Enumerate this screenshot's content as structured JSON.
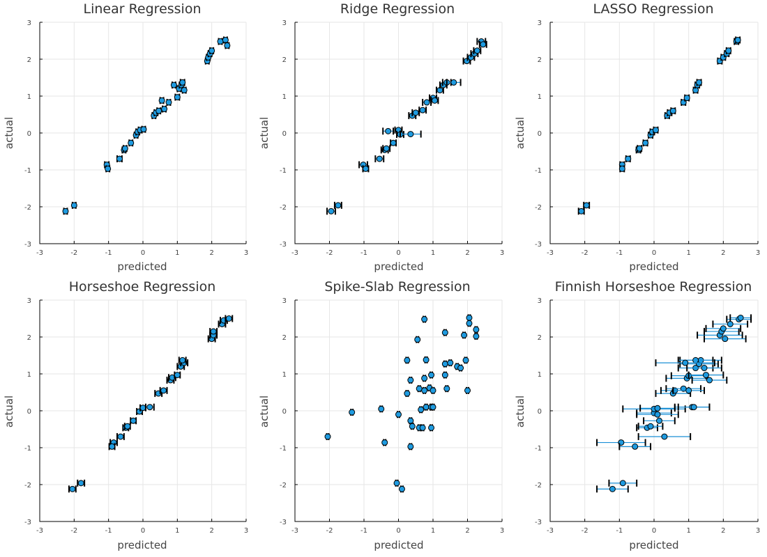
{
  "chart_data": [
    {
      "type": "scatter",
      "title": "Linear Regression",
      "xlabel": "predicted",
      "ylabel": "actual",
      "xlim": [
        -3,
        3
      ],
      "ylim": [
        -3,
        3
      ],
      "xticks": [
        -3,
        -2,
        -1,
        0,
        1,
        2,
        3
      ],
      "yticks": [
        -3,
        -2,
        -1,
        0,
        1,
        2,
        3
      ],
      "grid": true,
      "error_bars": "horizontal",
      "points": [
        {
          "x": -2.25,
          "y": -2.12,
          "err": 0.05
        },
        {
          "x": -2.0,
          "y": -1.96,
          "err": 0.05
        },
        {
          "x": -1.05,
          "y": -0.86,
          "err": 0.06
        },
        {
          "x": -1.02,
          "y": -0.97,
          "err": 0.05
        },
        {
          "x": -0.68,
          "y": -0.7,
          "err": 0.07
        },
        {
          "x": -0.55,
          "y": -0.46,
          "err": 0.05
        },
        {
          "x": -0.52,
          "y": -0.42,
          "err": 0.05
        },
        {
          "x": -0.35,
          "y": -0.27,
          "err": 0.05
        },
        {
          "x": -0.2,
          "y": -0.06,
          "err": 0.05
        },
        {
          "x": -0.15,
          "y": 0.03,
          "err": 0.05
        },
        {
          "x": -0.08,
          "y": 0.08,
          "err": 0.05
        },
        {
          "x": 0.02,
          "y": 0.1,
          "err": 0.05
        },
        {
          "x": 0.32,
          "y": 0.47,
          "err": 0.05
        },
        {
          "x": 0.38,
          "y": 0.55,
          "err": 0.05
        },
        {
          "x": 0.46,
          "y": 0.6,
          "err": 0.05
        },
        {
          "x": 0.55,
          "y": 0.88,
          "err": 0.05
        },
        {
          "x": 0.62,
          "y": 0.65,
          "err": 0.05
        },
        {
          "x": 0.75,
          "y": 0.83,
          "err": 0.05
        },
        {
          "x": 0.9,
          "y": 1.3,
          "err": 0.05
        },
        {
          "x": 1.0,
          "y": 0.97,
          "err": 0.06
        },
        {
          "x": 1.05,
          "y": 1.2,
          "err": 0.05
        },
        {
          "x": 1.12,
          "y": 1.3,
          "err": 0.06
        },
        {
          "x": 1.15,
          "y": 1.37,
          "err": 0.06
        },
        {
          "x": 1.2,
          "y": 1.16,
          "err": 0.05
        },
        {
          "x": 1.87,
          "y": 1.95,
          "err": 0.05
        },
        {
          "x": 1.9,
          "y": 2.05,
          "err": 0.05
        },
        {
          "x": 1.95,
          "y": 2.15,
          "err": 0.05
        },
        {
          "x": 2.0,
          "y": 2.23,
          "err": 0.05
        },
        {
          "x": 2.25,
          "y": 2.48,
          "err": 0.05
        },
        {
          "x": 2.4,
          "y": 2.52,
          "err": 0.05
        },
        {
          "x": 2.45,
          "y": 2.37,
          "err": 0.05
        }
      ]
    },
    {
      "type": "scatter",
      "title": "Ridge Regression",
      "xlabel": "predicted",
      "ylabel": "actual",
      "xlim": [
        -3,
        3
      ],
      "ylim": [
        -3,
        3
      ],
      "xticks": [
        -3,
        -2,
        -1,
        0,
        1,
        2,
        3
      ],
      "yticks": [
        -3,
        -2,
        -1,
        0,
        1,
        2,
        3
      ],
      "grid": true,
      "error_bars": "horizontal",
      "points": [
        {
          "x": -1.95,
          "y": -2.12,
          "err": 0.12
        },
        {
          "x": -1.75,
          "y": -1.96,
          "err": 0.1
        },
        {
          "x": -1.02,
          "y": -0.86,
          "err": 0.12
        },
        {
          "x": -0.95,
          "y": -0.97,
          "err": 0.08
        },
        {
          "x": -0.55,
          "y": -0.7,
          "err": 0.12
        },
        {
          "x": -0.4,
          "y": -0.46,
          "err": 0.1
        },
        {
          "x": -0.35,
          "y": -0.42,
          "err": 0.1
        },
        {
          "x": -0.15,
          "y": -0.27,
          "err": 0.08
        },
        {
          "x": -0.3,
          "y": 0.05,
          "err": 0.15
        },
        {
          "x": 0.0,
          "y": 0.08,
          "err": 0.1
        },
        {
          "x": 0.05,
          "y": -0.04,
          "err": 0.1
        },
        {
          "x": 0.35,
          "y": -0.03,
          "err": 0.3
        },
        {
          "x": 0.4,
          "y": 0.47,
          "err": 0.1
        },
        {
          "x": 0.5,
          "y": 0.55,
          "err": 0.1
        },
        {
          "x": 0.7,
          "y": 0.62,
          "err": 0.1
        },
        {
          "x": 0.82,
          "y": 0.83,
          "err": 0.12
        },
        {
          "x": 1.0,
          "y": 0.95,
          "err": 0.1
        },
        {
          "x": 1.05,
          "y": 0.88,
          "err": 0.1
        },
        {
          "x": 1.2,
          "y": 1.16,
          "err": 0.1
        },
        {
          "x": 1.3,
          "y": 1.3,
          "err": 0.1
        },
        {
          "x": 1.4,
          "y": 1.37,
          "err": 0.12
        },
        {
          "x": 1.6,
          "y": 1.37,
          "err": 0.2
        },
        {
          "x": 1.98,
          "y": 1.95,
          "err": 0.1
        },
        {
          "x": 2.1,
          "y": 2.05,
          "err": 0.1
        },
        {
          "x": 2.2,
          "y": 2.15,
          "err": 0.1
        },
        {
          "x": 2.28,
          "y": 2.23,
          "err": 0.1
        },
        {
          "x": 2.4,
          "y": 2.48,
          "err": 0.12
        },
        {
          "x": 2.45,
          "y": 2.4,
          "err": 0.1
        }
      ]
    },
    {
      "type": "scatter",
      "title": "LASSO Regression",
      "xlabel": "predicted",
      "ylabel": "actual",
      "xlim": [
        -3,
        3
      ],
      "ylim": [
        -3,
        3
      ],
      "xticks": [
        -3,
        -2,
        -1,
        0,
        1,
        2,
        3
      ],
      "yticks": [
        -3,
        -2,
        -1,
        0,
        1,
        2,
        3
      ],
      "grid": true,
      "error_bars": "horizontal",
      "points": [
        {
          "x": -2.1,
          "y": -2.12,
          "err": 0.08
        },
        {
          "x": -1.95,
          "y": -1.96,
          "err": 0.08
        },
        {
          "x": -0.92,
          "y": -0.86,
          "err": 0.06
        },
        {
          "x": -0.92,
          "y": -0.97,
          "err": 0.06
        },
        {
          "x": -0.75,
          "y": -0.7,
          "err": 0.06
        },
        {
          "x": -0.45,
          "y": -0.46,
          "err": 0.06
        },
        {
          "x": -0.42,
          "y": -0.42,
          "err": 0.06
        },
        {
          "x": -0.25,
          "y": -0.27,
          "err": 0.06
        },
        {
          "x": -0.1,
          "y": -0.06,
          "err": 0.06
        },
        {
          "x": -0.05,
          "y": 0.03,
          "err": 0.06
        },
        {
          "x": 0.05,
          "y": 0.08,
          "err": 0.06
        },
        {
          "x": 0.38,
          "y": 0.47,
          "err": 0.06
        },
        {
          "x": 0.45,
          "y": 0.55,
          "err": 0.06
        },
        {
          "x": 0.55,
          "y": 0.6,
          "err": 0.06
        },
        {
          "x": 0.85,
          "y": 0.83,
          "err": 0.06
        },
        {
          "x": 0.95,
          "y": 0.95,
          "err": 0.06
        },
        {
          "x": 1.2,
          "y": 1.16,
          "err": 0.06
        },
        {
          "x": 1.25,
          "y": 1.3,
          "err": 0.06
        },
        {
          "x": 1.3,
          "y": 1.37,
          "err": 0.06
        },
        {
          "x": 1.9,
          "y": 1.95,
          "err": 0.06
        },
        {
          "x": 2.0,
          "y": 2.05,
          "err": 0.06
        },
        {
          "x": 2.1,
          "y": 2.15,
          "err": 0.06
        },
        {
          "x": 2.15,
          "y": 2.23,
          "err": 0.06
        },
        {
          "x": 2.38,
          "y": 2.48,
          "err": 0.06
        },
        {
          "x": 2.42,
          "y": 2.52,
          "err": 0.06
        }
      ]
    },
    {
      "type": "scatter",
      "title": "Horseshoe Regression",
      "xlabel": "predicted",
      "ylabel": "actual",
      "xlim": [
        -3,
        3
      ],
      "ylim": [
        -3,
        3
      ],
      "xticks": [
        -3,
        -2,
        -1,
        0,
        1,
        2,
        3
      ],
      "yticks": [
        -3,
        -2,
        -1,
        0,
        1,
        2,
        3
      ],
      "grid": true,
      "error_bars": "horizontal",
      "points": [
        {
          "x": -2.05,
          "y": -2.12,
          "err": 0.1
        },
        {
          "x": -1.8,
          "y": -1.96,
          "err": 0.1
        },
        {
          "x": -0.85,
          "y": -0.86,
          "err": 0.1
        },
        {
          "x": -0.9,
          "y": -0.97,
          "err": 0.08
        },
        {
          "x": -0.65,
          "y": -0.7,
          "err": 0.1
        },
        {
          "x": -0.5,
          "y": -0.46,
          "err": 0.08
        },
        {
          "x": -0.45,
          "y": -0.42,
          "err": 0.08
        },
        {
          "x": -0.28,
          "y": -0.27,
          "err": 0.08
        },
        {
          "x": -0.1,
          "y": -0.02,
          "err": 0.08
        },
        {
          "x": 0.0,
          "y": 0.08,
          "err": 0.08
        },
        {
          "x": 0.2,
          "y": 0.1,
          "err": 0.12
        },
        {
          "x": 0.45,
          "y": 0.47,
          "err": 0.1
        },
        {
          "x": 0.6,
          "y": 0.55,
          "err": 0.1
        },
        {
          "x": 0.8,
          "y": 0.83,
          "err": 0.1
        },
        {
          "x": 0.85,
          "y": 0.9,
          "err": 0.1
        },
        {
          "x": 1.0,
          "y": 0.97,
          "err": 0.08
        },
        {
          "x": 1.1,
          "y": 1.2,
          "err": 0.1
        },
        {
          "x": 1.2,
          "y": 1.3,
          "err": 0.1
        },
        {
          "x": 1.15,
          "y": 1.37,
          "err": 0.1
        },
        {
          "x": 2.0,
          "y": 1.95,
          "err": 0.1
        },
        {
          "x": 2.05,
          "y": 2.05,
          "err": 0.1
        },
        {
          "x": 2.05,
          "y": 2.15,
          "err": 0.1
        },
        {
          "x": 2.3,
          "y": 2.35,
          "err": 0.1
        },
        {
          "x": 2.35,
          "y": 2.45,
          "err": 0.1
        },
        {
          "x": 2.5,
          "y": 2.5,
          "err": 0.1
        }
      ]
    },
    {
      "type": "scatter",
      "title": "Spike-Slab Regression",
      "xlabel": "predicted",
      "ylabel": "actual",
      "xlim": [
        -3,
        3
      ],
      "ylim": [
        -3,
        3
      ],
      "xticks": [
        -3,
        -2,
        -1,
        0,
        1,
        2,
        3
      ],
      "yticks": [
        -3,
        -2,
        -1,
        0,
        1,
        2,
        3
      ],
      "grid": true,
      "error_bars": "horizontal",
      "points": [
        {
          "x": -2.05,
          "y": -0.7,
          "err": 0.03
        },
        {
          "x": -1.35,
          "y": -0.04,
          "err": 0.03
        },
        {
          "x": -0.5,
          "y": 0.05,
          "err": 0.03
        },
        {
          "x": -0.4,
          "y": -0.86,
          "err": 0.03
        },
        {
          "x": -0.05,
          "y": -1.96,
          "err": 0.03
        },
        {
          "x": 0.1,
          "y": -2.12,
          "err": 0.03
        },
        {
          "x": 0.0,
          "y": -0.1,
          "err": 0.03
        },
        {
          "x": 0.35,
          "y": -0.97,
          "err": 0.03
        },
        {
          "x": 0.25,
          "y": 0.47,
          "err": 0.03
        },
        {
          "x": 0.25,
          "y": 1.37,
          "err": 0.03
        },
        {
          "x": 0.35,
          "y": 0.83,
          "err": 0.03
        },
        {
          "x": 0.35,
          "y": -0.27,
          "err": 0.03
        },
        {
          "x": 0.4,
          "y": -0.42,
          "err": 0.03
        },
        {
          "x": 0.55,
          "y": 1.93,
          "err": 0.03
        },
        {
          "x": 0.6,
          "y": 0.6,
          "err": 0.03
        },
        {
          "x": 0.6,
          "y": -0.46,
          "err": 0.03
        },
        {
          "x": 0.65,
          "y": 0.03,
          "err": 0.03
        },
        {
          "x": 0.7,
          "y": -0.46,
          "err": 0.03
        },
        {
          "x": 0.75,
          "y": 0.55,
          "err": 0.03
        },
        {
          "x": 0.75,
          "y": 2.48,
          "err": 0.03
        },
        {
          "x": 0.75,
          "y": 0.88,
          "err": 0.03
        },
        {
          "x": 0.8,
          "y": 1.38,
          "err": 0.03
        },
        {
          "x": 0.8,
          "y": 0.1,
          "err": 0.03
        },
        {
          "x": 0.9,
          "y": 0.62,
          "err": 0.03
        },
        {
          "x": 0.95,
          "y": 0.97,
          "err": 0.03
        },
        {
          "x": 0.95,
          "y": 0.1,
          "err": 0.03
        },
        {
          "x": 1.0,
          "y": 0.55,
          "err": 0.03
        },
        {
          "x": 1.0,
          "y": 0.1,
          "err": 0.03
        },
        {
          "x": 0.95,
          "y": -0.46,
          "err": 0.03
        },
        {
          "x": 1.35,
          "y": 2.12,
          "err": 0.03
        },
        {
          "x": 1.35,
          "y": 1.27,
          "err": 0.03
        },
        {
          "x": 1.35,
          "y": 0.97,
          "err": 0.03
        },
        {
          "x": 1.4,
          "y": 0.6,
          "err": 0.03
        },
        {
          "x": 1.5,
          "y": 1.3,
          "err": 0.03
        },
        {
          "x": 1.7,
          "y": 1.2,
          "err": 0.03
        },
        {
          "x": 1.8,
          "y": 1.16,
          "err": 0.03
        },
        {
          "x": 1.9,
          "y": 2.05,
          "err": 0.03
        },
        {
          "x": 1.95,
          "y": 1.37,
          "err": 0.03
        },
        {
          "x": 2.0,
          "y": 0.55,
          "err": 0.03
        },
        {
          "x": 2.05,
          "y": 2.52,
          "err": 0.03
        },
        {
          "x": 2.05,
          "y": 2.37,
          "err": 0.03
        },
        {
          "x": 2.25,
          "y": 2.2,
          "err": 0.03
        },
        {
          "x": 2.25,
          "y": 2.02,
          "err": 0.03
        }
      ]
    },
    {
      "type": "scatter",
      "title": "Finnish Horseshoe Regression",
      "xlabel": "predicted",
      "ylabel": "actual",
      "xlim": [
        -3,
        3
      ],
      "ylim": [
        -3,
        3
      ],
      "xticks": [
        -3,
        -2,
        -1,
        0,
        1,
        2,
        3
      ],
      "yticks": [
        -3,
        -2,
        -1,
        0,
        1,
        2,
        3
      ],
      "grid": true,
      "error_bars": "horizontal",
      "points": [
        {
          "x": -1.2,
          "y": -2.12,
          "err": 0.45
        },
        {
          "x": -0.9,
          "y": -1.96,
          "err": 0.4
        },
        {
          "x": -0.95,
          "y": -0.86,
          "err": 0.7
        },
        {
          "x": -0.55,
          "y": -0.97,
          "err": 0.45
        },
        {
          "x": 0.3,
          "y": -0.7,
          "err": 0.75
        },
        {
          "x": -0.2,
          "y": -0.46,
          "err": 0.3
        },
        {
          "x": -0.1,
          "y": -0.42,
          "err": 0.35
        },
        {
          "x": 0.15,
          "y": -0.27,
          "err": 0.45
        },
        {
          "x": 0.0,
          "y": -0.06,
          "err": 0.5
        },
        {
          "x": 0.1,
          "y": -0.1,
          "err": 0.6
        },
        {
          "x": 0.0,
          "y": 0.05,
          "err": 0.9
        },
        {
          "x": 0.1,
          "y": 0.07,
          "err": 0.5
        },
        {
          "x": 1.1,
          "y": 0.1,
          "err": 0.5
        },
        {
          "x": 1.15,
          "y": 0.1,
          "err": 0.45
        },
        {
          "x": 0.55,
          "y": 0.47,
          "err": 0.5
        },
        {
          "x": 0.6,
          "y": 0.55,
          "err": 0.4
        },
        {
          "x": 0.85,
          "y": 0.6,
          "err": 0.5
        },
        {
          "x": 1.0,
          "y": 0.55,
          "err": 0.45
        },
        {
          "x": 0.95,
          "y": 0.88,
          "err": 0.6
        },
        {
          "x": 1.0,
          "y": 0.95,
          "err": 0.5
        },
        {
          "x": 1.6,
          "y": 0.83,
          "err": 0.5
        },
        {
          "x": 1.5,
          "y": 0.97,
          "err": 0.5
        },
        {
          "x": 1.2,
          "y": 1.16,
          "err": 0.5
        },
        {
          "x": 1.3,
          "y": 1.27,
          "err": 0.55
        },
        {
          "x": 1.35,
          "y": 1.37,
          "err": 0.6
        },
        {
          "x": 1.45,
          "y": 1.16,
          "err": 0.5
        },
        {
          "x": 1.2,
          "y": 1.37,
          "err": 0.5
        },
        {
          "x": 0.9,
          "y": 1.3,
          "err": 0.85
        },
        {
          "x": 1.9,
          "y": 2.05,
          "err": 0.65
        },
        {
          "x": 2.05,
          "y": 1.95,
          "err": 0.6
        },
        {
          "x": 1.95,
          "y": 2.15,
          "err": 0.5
        },
        {
          "x": 2.0,
          "y": 2.23,
          "err": 0.5
        },
        {
          "x": 2.2,
          "y": 2.35,
          "err": 0.5
        },
        {
          "x": 2.45,
          "y": 2.48,
          "err": 0.35
        },
        {
          "x": 2.5,
          "y": 2.52,
          "err": 0.3
        }
      ]
    }
  ]
}
